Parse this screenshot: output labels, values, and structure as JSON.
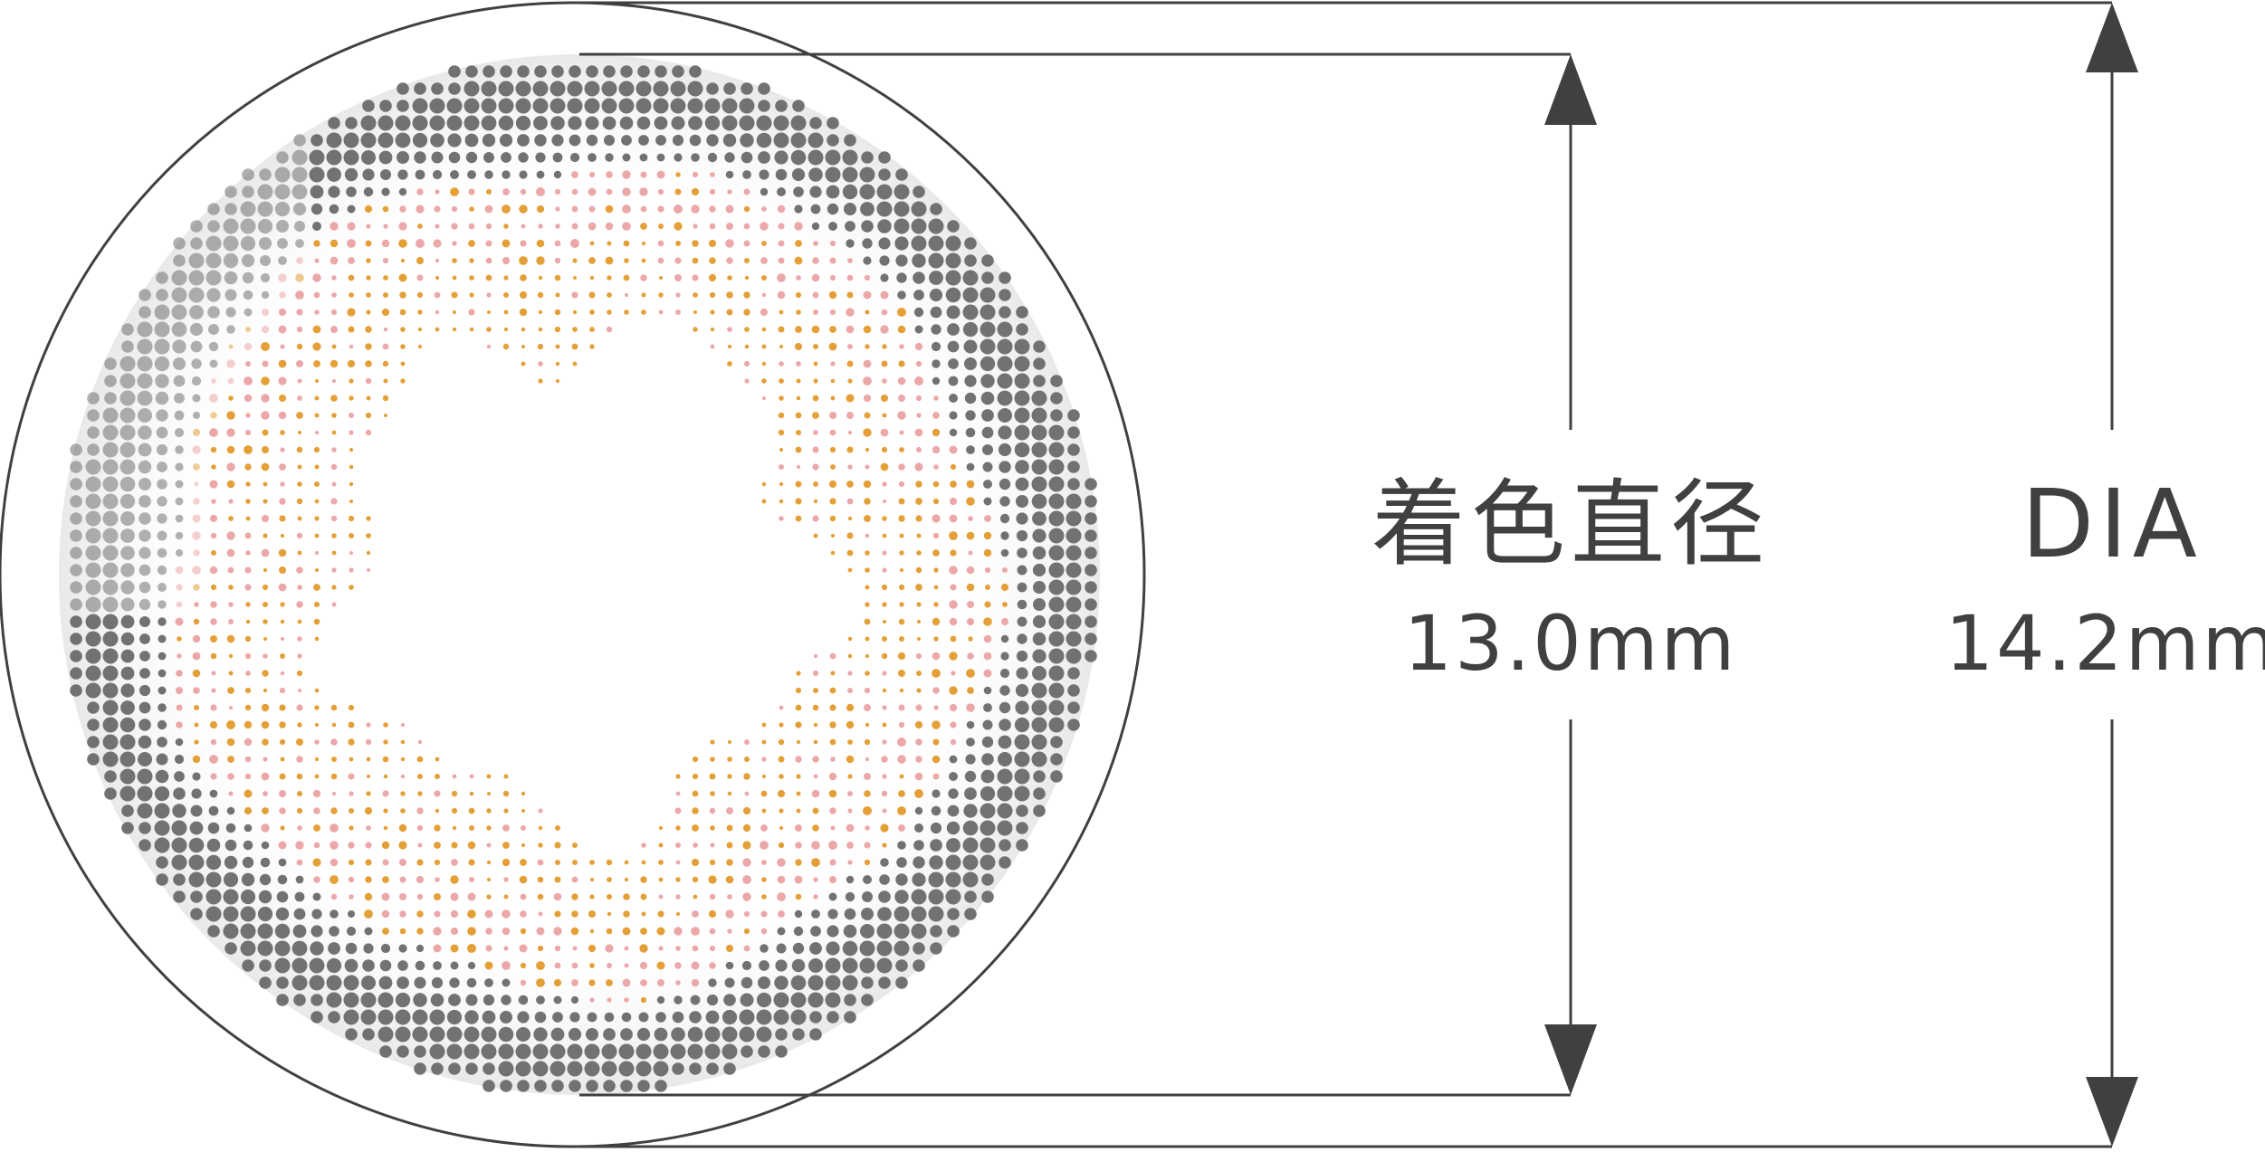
{
  "colors": {
    "line": "#404040",
    "outer_dots": "#6a6a6a",
    "pink_dots": "#eba3a3",
    "orange_dots": "#e49a2c",
    "haze": "#e9e9e9"
  },
  "lens": {
    "description_icon": "contact-lens-icon"
  },
  "dimensions": {
    "tint": {
      "label": "着色直径",
      "value": "13.0mm"
    },
    "dia": {
      "label": "DIA",
      "value": "14.2mm"
    }
  }
}
